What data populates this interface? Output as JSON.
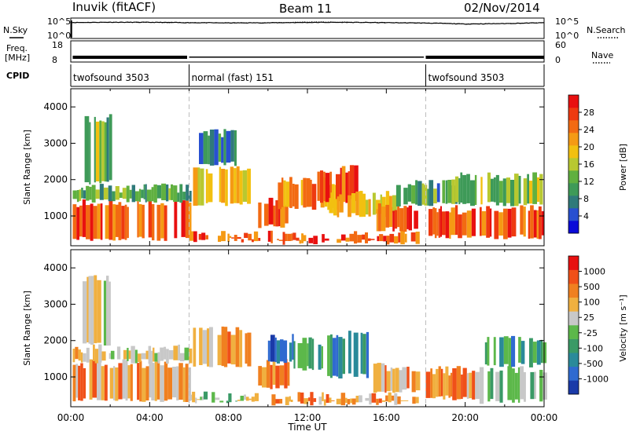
{
  "header": {
    "station": "Inuvik (fitACF)",
    "beam": "Beam 11",
    "date": "02/Nov/2014"
  },
  "chart_data": [
    {
      "type": "line",
      "name": "noise-panel",
      "left_label": "N.Sky",
      "right_label": "N.Search",
      "left_ticks": [
        "10^5",
        "10^0"
      ],
      "right_ticks": [
        "10^5",
        "10^0"
      ],
      "yscale": "log",
      "ylim": [
        1,
        100000
      ],
      "x": [
        0,
        2,
        4,
        6,
        8,
        10,
        12,
        14,
        16,
        18,
        20,
        22,
        24
      ],
      "series": [
        {
          "name": "N.Sky",
          "values": [
            8000,
            9500,
            9000,
            7500,
            6500,
            7000,
            8500,
            9000,
            7500,
            6000,
            3500,
            4500,
            7000
          ]
        },
        {
          "name": "N.Search",
          "values": [
            8000,
            9500,
            9000,
            7500,
            6500,
            7000,
            11000,
            10000,
            8500,
            6000,
            3500,
            4500,
            7000
          ]
        }
      ]
    },
    {
      "type": "line",
      "name": "frequency-panel",
      "left_label": "Freq.",
      "left_unit": "[MHz]",
      "left_ticks": [
        "18",
        "8"
      ],
      "right_label": "Nave",
      "right_ticks": [
        "60",
        "0"
      ],
      "ylim": [
        8,
        18
      ],
      "segments": [
        {
          "x_start": 0.1,
          "x_end": 5.9,
          "freq_low": 9.5,
          "freq_high": 11.0
        },
        {
          "x_start": 6.0,
          "x_end": 17.9,
          "freq_low": 10.2,
          "freq_high": 10.6
        },
        {
          "x_start": 18.0,
          "x_end": 24.0,
          "freq_low": 9.5,
          "freq_high": 11.0
        }
      ]
    },
    {
      "type": "table",
      "name": "cpid-bar",
      "label": "CPID",
      "programs": [
        {
          "text": "twofsound 3503",
          "start": 0,
          "end": 6
        },
        {
          "text": "normal (fast) 151",
          "start": 6,
          "end": 18
        },
        {
          "text": "twofsound 3503",
          "start": 18,
          "end": 24
        }
      ]
    },
    {
      "type": "heatmap",
      "name": "power",
      "ylabel": "Slant Range [km]",
      "yticks": [
        1000,
        2000,
        3000,
        4000
      ],
      "ylim": [
        180,
        4500
      ],
      "xlim": [
        0,
        24
      ],
      "colorbar": {
        "label": "Power [dB]",
        "ticks": [
          "4",
          "8",
          "12",
          "16",
          "20",
          "24",
          "28"
        ],
        "colors": [
          "#0a0ad8",
          "#2850d0",
          "#2f7a7a",
          "#3e9a58",
          "#60b040",
          "#b8c830",
          "#f2c010",
          "#f59a14",
          "#f26a12",
          "#ee3a10",
          "#e81010"
        ]
      },
      "regions": [
        {
          "t0": 0.1,
          "t1": 6.0,
          "r0": 350,
          "r1": 1500,
          "level": 0.88
        },
        {
          "t0": 0.1,
          "t1": 6.0,
          "r0": 1400,
          "r1": 1900,
          "level": 0.35
        },
        {
          "t0": 0.6,
          "t1": 2.0,
          "r0": 1900,
          "r1": 3800,
          "level": 0.4
        },
        {
          "t0": 6.0,
          "t1": 9.5,
          "r0": 300,
          "r1": 600,
          "level": 0.8
        },
        {
          "t0": 6.2,
          "t1": 9.0,
          "r0": 1300,
          "r1": 2400,
          "level": 0.6
        },
        {
          "t0": 6.5,
          "t1": 8.5,
          "r0": 2400,
          "r1": 3400,
          "level": 0.25
        },
        {
          "t0": 9.5,
          "t1": 11.0,
          "r0": 700,
          "r1": 1500,
          "level": 0.85
        },
        {
          "t0": 10.5,
          "t1": 13.5,
          "r0": 1200,
          "r1": 2100,
          "level": 0.7
        },
        {
          "t0": 12.5,
          "t1": 14.5,
          "r0": 1400,
          "r1": 2400,
          "level": 0.9
        },
        {
          "t0": 13.0,
          "t1": 16.5,
          "r0": 1000,
          "r1": 1700,
          "level": 0.6
        },
        {
          "t0": 10.0,
          "t1": 17.5,
          "r0": 250,
          "r1": 600,
          "level": 0.85
        },
        {
          "t0": 15.5,
          "t1": 17.5,
          "r0": 600,
          "r1": 1400,
          "level": 0.8
        },
        {
          "t0": 16.5,
          "t1": 19.5,
          "r0": 1300,
          "r1": 2000,
          "level": 0.3
        },
        {
          "t0": 18.0,
          "t1": 24.0,
          "r0": 400,
          "r1": 1300,
          "level": 0.82
        },
        {
          "t0": 19.0,
          "t1": 24.0,
          "r0": 1300,
          "r1": 2200,
          "level": 0.4
        }
      ]
    },
    {
      "type": "heatmap",
      "name": "velocity",
      "ylabel": "Slant Range [km]",
      "xlabel": "Time UT",
      "xticks": [
        "00:00",
        "04:00",
        "08:00",
        "12:00",
        "16:00",
        "20:00",
        "00:00"
      ],
      "yticks": [
        1000,
        2000,
        3000,
        4000
      ],
      "ylim": [
        180,
        4500
      ],
      "xlim": [
        0,
        24
      ],
      "colorbar": {
        "label": "Velocity [m s⁻¹]",
        "ticks": [
          "1000",
          "500",
          "100",
          "25",
          "-25",
          "-100",
          "-500",
          "-1000"
        ],
        "colors": [
          "#1a3aa8",
          "#2f6ad0",
          "#2a8a9a",
          "#3a9a66",
          "#5cb84a",
          "#c8c8c8",
          "#f0b040",
          "#f08020",
          "#f05018",
          "#e81010"
        ]
      },
      "regions": [
        {
          "t0": 0.1,
          "t1": 6.0,
          "r0": 350,
          "r1": 1500,
          "level": 0.72
        },
        {
          "t0": 0.1,
          "t1": 6.0,
          "r0": 1400,
          "r1": 1900,
          "level": 0.55
        },
        {
          "t0": 0.6,
          "t1": 2.0,
          "r0": 1900,
          "r1": 3800,
          "level": 0.6
        },
        {
          "t0": 6.0,
          "t1": 9.5,
          "r0": 300,
          "r1": 600,
          "level": 0.5
        },
        {
          "t0": 6.2,
          "t1": 9.0,
          "r0": 1300,
          "r1": 2400,
          "level": 0.7
        },
        {
          "t0": 9.5,
          "t1": 11.0,
          "r0": 700,
          "r1": 1500,
          "level": 0.75
        },
        {
          "t0": 10.0,
          "t1": 11.3,
          "r0": 1400,
          "r1": 2200,
          "level": 0.05
        },
        {
          "t0": 11.3,
          "t1": 13.0,
          "r0": 1200,
          "r1": 2100,
          "level": 0.35
        },
        {
          "t0": 13.0,
          "t1": 15.0,
          "r0": 1000,
          "r1": 2300,
          "level": 0.25
        },
        {
          "t0": 10.0,
          "t1": 17.5,
          "r0": 250,
          "r1": 600,
          "level": 0.72
        },
        {
          "t0": 15.0,
          "t1": 17.5,
          "r0": 600,
          "r1": 1400,
          "level": 0.7
        },
        {
          "t0": 18.0,
          "t1": 20.5,
          "r0": 400,
          "r1": 1300,
          "level": 0.7
        },
        {
          "t0": 20.5,
          "t1": 24.0,
          "r0": 300,
          "r1": 1300,
          "level": 0.45
        },
        {
          "t0": 21.0,
          "t1": 24.0,
          "r0": 1300,
          "r1": 2200,
          "level": 0.3
        }
      ]
    }
  ]
}
